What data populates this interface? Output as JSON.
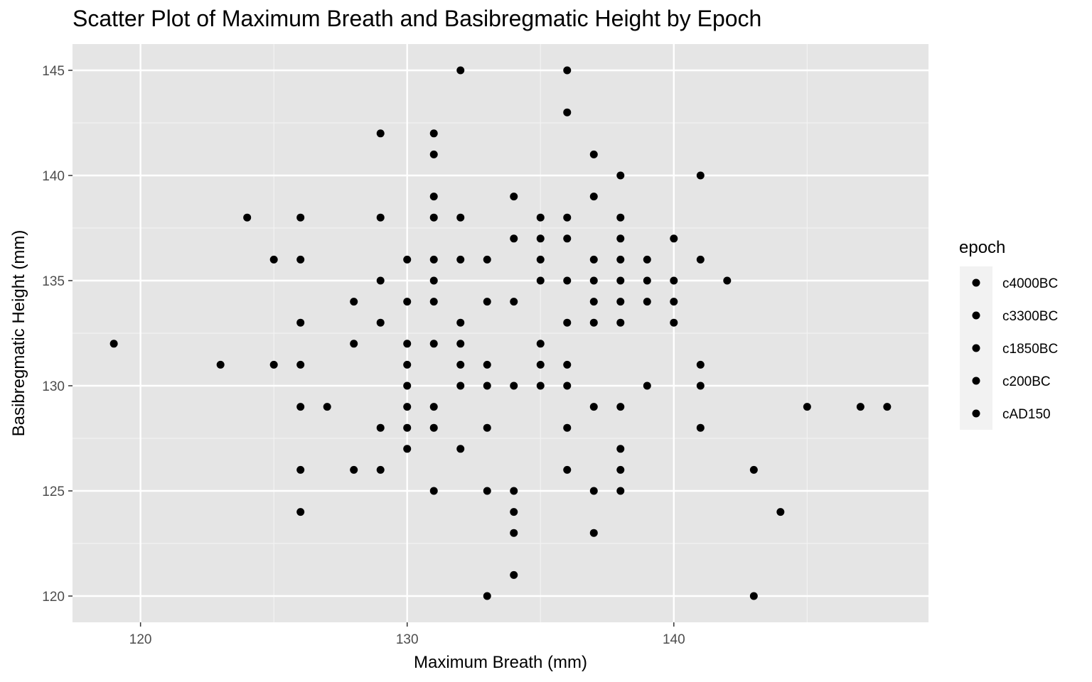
{
  "chart_data": {
    "type": "scatter",
    "title": "Scatter Plot of Maximum Breath and Basibregmatic Height by Epoch",
    "xlabel": "Maximum Breath (mm)",
    "ylabel": "Basibregmatic Height (mm)",
    "xlim": [
      117.45,
      149.55
    ],
    "ylim": [
      118.75,
      146.25
    ],
    "x_ticks": [
      120,
      130,
      140
    ],
    "y_ticks": [
      120,
      125,
      130,
      135,
      140,
      145
    ],
    "grid": true,
    "background": "#e5e5e5",
    "point_color": "#000000",
    "legend": {
      "title": "epoch",
      "position": "right",
      "entries": [
        "c4000BC",
        "c3300BC",
        "c1850BC",
        "c200BC",
        "cAD150"
      ]
    },
    "points": [
      {
        "x": 119,
        "y": 132
      },
      {
        "x": 123,
        "y": 131
      },
      {
        "x": 124,
        "y": 138
      },
      {
        "x": 125,
        "y": 136
      },
      {
        "x": 125,
        "y": 131
      },
      {
        "x": 126,
        "y": 138
      },
      {
        "x": 126,
        "y": 136
      },
      {
        "x": 126,
        "y": 133
      },
      {
        "x": 126,
        "y": 131
      },
      {
        "x": 126,
        "y": 129
      },
      {
        "x": 126,
        "y": 126
      },
      {
        "x": 126,
        "y": 124
      },
      {
        "x": 127,
        "y": 129
      },
      {
        "x": 128,
        "y": 134
      },
      {
        "x": 128,
        "y": 132
      },
      {
        "x": 128,
        "y": 126
      },
      {
        "x": 129,
        "y": 142
      },
      {
        "x": 129,
        "y": 138
      },
      {
        "x": 129,
        "y": 135
      },
      {
        "x": 129,
        "y": 133
      },
      {
        "x": 129,
        "y": 128
      },
      {
        "x": 129,
        "y": 126
      },
      {
        "x": 130,
        "y": 136
      },
      {
        "x": 130,
        "y": 134
      },
      {
        "x": 130,
        "y": 132
      },
      {
        "x": 130,
        "y": 131
      },
      {
        "x": 130,
        "y": 130
      },
      {
        "x": 130,
        "y": 129
      },
      {
        "x": 130,
        "y": 128
      },
      {
        "x": 130,
        "y": 127
      },
      {
        "x": 131,
        "y": 142
      },
      {
        "x": 131,
        "y": 141
      },
      {
        "x": 131,
        "y": 139
      },
      {
        "x": 131,
        "y": 138
      },
      {
        "x": 131,
        "y": 136
      },
      {
        "x": 131,
        "y": 135
      },
      {
        "x": 131,
        "y": 134
      },
      {
        "x": 131,
        "y": 132
      },
      {
        "x": 131,
        "y": 129
      },
      {
        "x": 131,
        "y": 128
      },
      {
        "x": 131,
        "y": 125
      },
      {
        "x": 132,
        "y": 145
      },
      {
        "x": 132,
        "y": 138
      },
      {
        "x": 132,
        "y": 136
      },
      {
        "x": 132,
        "y": 133
      },
      {
        "x": 132,
        "y": 132
      },
      {
        "x": 132,
        "y": 131
      },
      {
        "x": 132,
        "y": 130
      },
      {
        "x": 132,
        "y": 127
      },
      {
        "x": 133,
        "y": 136
      },
      {
        "x": 133,
        "y": 134
      },
      {
        "x": 133,
        "y": 131
      },
      {
        "x": 133,
        "y": 130
      },
      {
        "x": 133,
        "y": 128
      },
      {
        "x": 133,
        "y": 125
      },
      {
        "x": 133,
        "y": 120
      },
      {
        "x": 134,
        "y": 139
      },
      {
        "x": 134,
        "y": 137
      },
      {
        "x": 134,
        "y": 134
      },
      {
        "x": 134,
        "y": 130
      },
      {
        "x": 134,
        "y": 125
      },
      {
        "x": 134,
        "y": 124
      },
      {
        "x": 134,
        "y": 123
      },
      {
        "x": 134,
        "y": 121
      },
      {
        "x": 135,
        "y": 138
      },
      {
        "x": 135,
        "y": 137
      },
      {
        "x": 135,
        "y": 136
      },
      {
        "x": 135,
        "y": 135
      },
      {
        "x": 135,
        "y": 132
      },
      {
        "x": 135,
        "y": 131
      },
      {
        "x": 135,
        "y": 130
      },
      {
        "x": 136,
        "y": 145
      },
      {
        "x": 136,
        "y": 143
      },
      {
        "x": 136,
        "y": 138
      },
      {
        "x": 136,
        "y": 137
      },
      {
        "x": 136,
        "y": 135
      },
      {
        "x": 136,
        "y": 133
      },
      {
        "x": 136,
        "y": 131
      },
      {
        "x": 136,
        "y": 130
      },
      {
        "x": 136,
        "y": 128
      },
      {
        "x": 136,
        "y": 126
      },
      {
        "x": 137,
        "y": 141
      },
      {
        "x": 137,
        "y": 139
      },
      {
        "x": 137,
        "y": 136
      },
      {
        "x": 137,
        "y": 135
      },
      {
        "x": 137,
        "y": 134
      },
      {
        "x": 137,
        "y": 133
      },
      {
        "x": 137,
        "y": 129
      },
      {
        "x": 137,
        "y": 125
      },
      {
        "x": 137,
        "y": 123
      },
      {
        "x": 138,
        "y": 140
      },
      {
        "x": 138,
        "y": 138
      },
      {
        "x": 138,
        "y": 137
      },
      {
        "x": 138,
        "y": 136
      },
      {
        "x": 138,
        "y": 135
      },
      {
        "x": 138,
        "y": 134
      },
      {
        "x": 138,
        "y": 133
      },
      {
        "x": 138,
        "y": 129
      },
      {
        "x": 138,
        "y": 127
      },
      {
        "x": 138,
        "y": 126
      },
      {
        "x": 138,
        "y": 125
      },
      {
        "x": 139,
        "y": 136
      },
      {
        "x": 139,
        "y": 135
      },
      {
        "x": 139,
        "y": 134
      },
      {
        "x": 139,
        "y": 130
      },
      {
        "x": 140,
        "y": 137
      },
      {
        "x": 140,
        "y": 135
      },
      {
        "x": 140,
        "y": 134
      },
      {
        "x": 140,
        "y": 133
      },
      {
        "x": 141,
        "y": 140
      },
      {
        "x": 141,
        "y": 136
      },
      {
        "x": 141,
        "y": 131
      },
      {
        "x": 141,
        "y": 130
      },
      {
        "x": 141,
        "y": 128
      },
      {
        "x": 142,
        "y": 135
      },
      {
        "x": 143,
        "y": 126
      },
      {
        "x": 143,
        "y": 120
      },
      {
        "x": 144,
        "y": 124
      },
      {
        "x": 145,
        "y": 129
      },
      {
        "x": 147,
        "y": 129
      },
      {
        "x": 148,
        "y": 129
      }
    ]
  }
}
